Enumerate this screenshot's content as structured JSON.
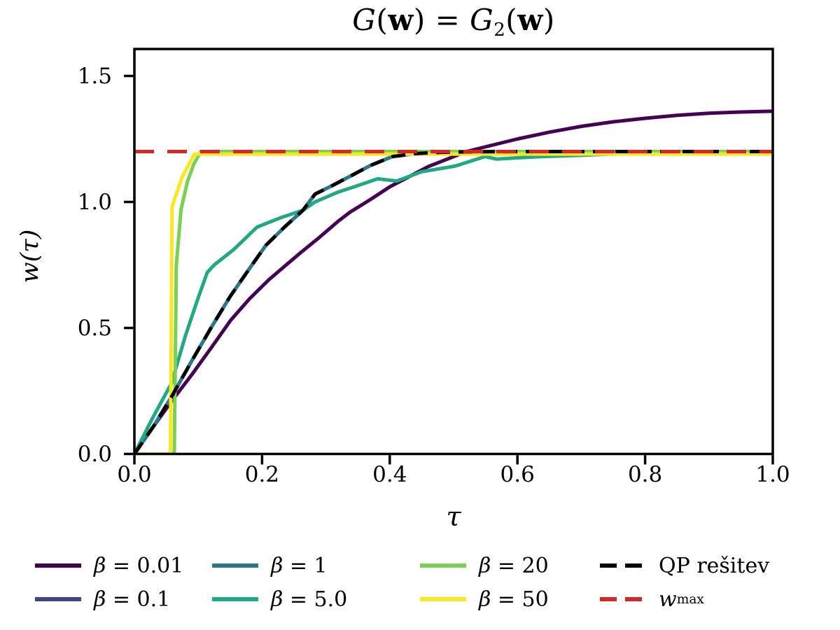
{
  "chart_data": {
    "type": "line",
    "title_parts": {
      "G1": "G",
      "p1": "(",
      "w1": "w",
      "p2": ")",
      "eq": " = ",
      "G2": "G",
      "sub": "2",
      "p3": "(",
      "w2": "w",
      "p4": ")"
    },
    "xlabel": "τ",
    "ylabel": "w(τ)",
    "xlim": [
      0.0,
      1.0
    ],
    "ylim": [
      0.0,
      1.607
    ],
    "grid": false,
    "x_ticks": [
      0.0,
      0.2,
      0.4,
      0.6,
      0.8,
      1.0
    ],
    "x_tick_labels": [
      "0.0",
      "0.2",
      "0.4",
      "0.6",
      "0.8",
      "1.0"
    ],
    "y_ticks": [
      0.0,
      0.5,
      1.0,
      1.5
    ],
    "y_tick_labels": [
      "0.0",
      "0.5",
      "1.0",
      "1.5"
    ],
    "w_max_value": 1.2,
    "series": [
      {
        "name": "beta = 0.01",
        "color": "#440154",
        "dash": null,
        "points": [
          [
            0,
            0
          ],
          [
            0.03,
            0.11
          ],
          [
            0.06,
            0.215
          ],
          [
            0.09,
            0.315
          ],
          [
            0.12,
            0.42
          ],
          [
            0.151,
            0.531
          ],
          [
            0.18,
            0.615
          ],
          [
            0.21,
            0.69
          ],
          [
            0.24,
            0.755
          ],
          [
            0.261,
            0.8
          ],
          [
            0.29,
            0.86
          ],
          [
            0.32,
            0.925
          ],
          [
            0.338,
            0.96
          ],
          [
            0.37,
            1.01
          ],
          [
            0.4,
            1.06
          ],
          [
            0.43,
            1.1
          ],
          [
            0.46,
            1.14
          ],
          [
            0.49,
            1.17
          ],
          [
            0.52,
            1.2
          ],
          [
            0.56,
            1.225
          ],
          [
            0.6,
            1.25
          ],
          [
            0.65,
            1.277
          ],
          [
            0.7,
            1.3
          ],
          [
            0.75,
            1.318
          ],
          [
            0.8,
            1.332
          ],
          [
            0.85,
            1.344
          ],
          [
            0.9,
            1.352
          ],
          [
            0.95,
            1.357
          ],
          [
            1.0,
            1.36
          ]
        ]
      },
      {
        "name": "beta = 0.1",
        "color": "#414487",
        "dash": null,
        "points": [
          [
            0,
            0
          ],
          [
            0.03,
            0.11
          ],
          [
            0.06,
            0.235
          ],
          [
            0.09,
            0.37
          ],
          [
            0.12,
            0.5
          ],
          [
            0.15,
            0.625
          ],
          [
            0.18,
            0.735
          ],
          [
            0.206,
            0.828
          ],
          [
            0.235,
            0.9
          ],
          [
            0.264,
            0.967
          ],
          [
            0.283,
            1.031
          ],
          [
            0.31,
            1.065
          ],
          [
            0.341,
            1.106
          ],
          [
            0.37,
            1.145
          ],
          [
            0.404,
            1.18
          ],
          [
            0.44,
            1.192
          ],
          [
            0.48,
            1.197
          ],
          [
            0.52,
            1.199
          ],
          [
            0.6,
            1.2
          ],
          [
            1.0,
            1.2
          ]
        ]
      },
      {
        "name": "beta = 1",
        "color": "#2a788e",
        "dash": null,
        "points": [
          [
            0,
            0
          ],
          [
            0.03,
            0.11
          ],
          [
            0.06,
            0.235
          ],
          [
            0.09,
            0.37
          ],
          [
            0.12,
            0.5
          ],
          [
            0.15,
            0.625
          ],
          [
            0.18,
            0.735
          ],
          [
            0.206,
            0.828
          ],
          [
            0.235,
            0.9
          ],
          [
            0.264,
            0.967
          ],
          [
            0.283,
            1.031
          ],
          [
            0.31,
            1.065
          ],
          [
            0.341,
            1.106
          ],
          [
            0.37,
            1.145
          ],
          [
            0.404,
            1.18
          ],
          [
            0.44,
            1.192
          ],
          [
            0.48,
            1.197
          ],
          [
            0.52,
            1.199
          ],
          [
            0.6,
            1.2
          ],
          [
            1.0,
            1.2
          ]
        ]
      },
      {
        "name": "beta = 5.0",
        "color": "#22a884",
        "dash": null,
        "points": [
          [
            0,
            0
          ],
          [
            0.028,
            0.14
          ],
          [
            0.058,
            0.28
          ],
          [
            0.08,
            0.47
          ],
          [
            0.1,
            0.62
          ],
          [
            0.114,
            0.72
          ],
          [
            0.125,
            0.75
          ],
          [
            0.155,
            0.81
          ],
          [
            0.192,
            0.9
          ],
          [
            0.203,
            0.911
          ],
          [
            0.232,
            0.94
          ],
          [
            0.264,
            0.967
          ],
          [
            0.283,
            1.0
          ],
          [
            0.32,
            1.04
          ],
          [
            0.35,
            1.065
          ],
          [
            0.381,
            1.092
          ],
          [
            0.411,
            1.083
          ],
          [
            0.45,
            1.12
          ],
          [
            0.502,
            1.142
          ],
          [
            0.549,
            1.18
          ],
          [
            0.568,
            1.17
          ],
          [
            0.6,
            1.175
          ],
          [
            0.637,
            1.18
          ],
          [
            0.7,
            1.185
          ],
          [
            0.747,
            1.19
          ],
          [
            0.85,
            1.192
          ],
          [
            1.0,
            1.192
          ]
        ]
      },
      {
        "name": "beta = 20",
        "color": "#7ad151",
        "dash": null,
        "points": [
          [
            0,
            0
          ],
          [
            0.0625,
            0
          ],
          [
            0.0657,
            0.75
          ],
          [
            0.073,
            0.97
          ],
          [
            0.083,
            1.08
          ],
          [
            0.093,
            1.15
          ],
          [
            0.104,
            1.2
          ],
          [
            1.0,
            1.2
          ]
        ]
      },
      {
        "name": "beta = 50",
        "color": "#fde725",
        "dash": null,
        "points": [
          [
            0,
            0
          ],
          [
            0.0565,
            0
          ],
          [
            0.059,
            0.98
          ],
          [
            0.0655,
            1.03
          ],
          [
            0.075,
            1.1
          ],
          [
            0.094,
            1.19
          ],
          [
            1.0,
            1.19
          ]
        ]
      },
      {
        "name": "QP resitev",
        "color": "#000000",
        "dash": [
          20,
          12
        ],
        "points": [
          [
            0,
            0
          ],
          [
            0.03,
            0.11
          ],
          [
            0.06,
            0.235
          ],
          [
            0.09,
            0.37
          ],
          [
            0.12,
            0.5
          ],
          [
            0.15,
            0.625
          ],
          [
            0.18,
            0.735
          ],
          [
            0.206,
            0.828
          ],
          [
            0.235,
            0.9
          ],
          [
            0.264,
            0.967
          ],
          [
            0.283,
            1.031
          ],
          [
            0.31,
            1.065
          ],
          [
            0.341,
            1.106
          ],
          [
            0.37,
            1.145
          ],
          [
            0.404,
            1.18
          ],
          [
            0.44,
            1.192
          ],
          [
            0.48,
            1.197
          ],
          [
            0.52,
            1.199
          ],
          [
            0.6,
            1.2
          ],
          [
            1.0,
            1.2
          ]
        ]
      },
      {
        "name": "w_max",
        "color": "#d62728",
        "dash": [
          28,
          19
        ],
        "points": [
          [
            0,
            1.2
          ],
          [
            1.0,
            1.2
          ]
        ]
      }
    ]
  },
  "legend": {
    "entries": [
      {
        "sym": "β",
        "val": " = 0.01",
        "sub": "",
        "color": "#440154",
        "dash": null
      },
      {
        "sym": "β",
        "val": " = 0.1",
        "sub": "",
        "color": "#414487",
        "dash": null
      },
      {
        "sym": "β",
        "val": " = 1",
        "sub": "",
        "color": "#2a788e",
        "dash": null
      },
      {
        "sym": "β",
        "val": " = 5.0",
        "sub": "",
        "color": "#22a884",
        "dash": null
      },
      {
        "sym": "β",
        "val": " = 20",
        "sub": "",
        "color": "#7ad151",
        "dash": null
      },
      {
        "sym": "β",
        "val": " = 50",
        "sub": "",
        "color": "#fde725",
        "dash": null
      },
      {
        "sym": "",
        "val": "QP rešitev",
        "sub": "",
        "color": "#000000",
        "dash": [
          24,
          12
        ]
      },
      {
        "sym": "w",
        "val": "",
        "sub": "max",
        "color": "#d62728",
        "dash": [
          24,
          12
        ]
      }
    ]
  },
  "style": {
    "axis_color": "#000000",
    "background": "#ffffff"
  }
}
